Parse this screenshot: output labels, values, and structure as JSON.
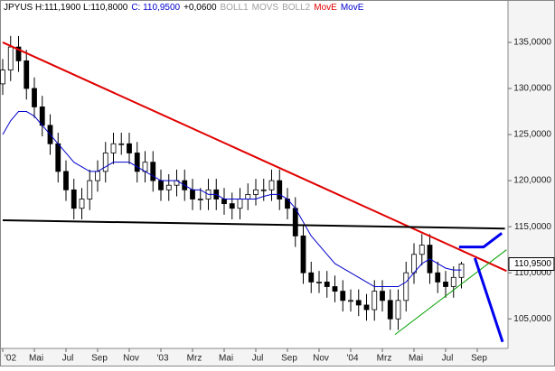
{
  "chart_data": {
    "type": "candlestick",
    "header": [
      {
        "text": "JPYUS H:111,1900 L:110,8000",
        "color": "#000000"
      },
      {
        "text": "C: 110,9500",
        "color": "#0000cc"
      },
      {
        "text": "+0,0600",
        "color": "#000000"
      },
      {
        "text": "BOLL1",
        "color": "#a0a0a0"
      },
      {
        "text": "MOVS",
        "color": "#a0a0a0"
      },
      {
        "text": "BOLL2",
        "color": "#a0a0a0"
      },
      {
        "text": "MovE",
        "color": "#e00000"
      },
      {
        "text": "MovE",
        "color": "#0000cc"
      }
    ],
    "categories": [
      "'02",
      null,
      null,
      null,
      "Mai",
      null,
      null,
      null,
      "Jul",
      null,
      null,
      null,
      "Sep",
      null,
      null,
      null,
      "Nov",
      null,
      null,
      null,
      "'03",
      null,
      null,
      null,
      "Mrz",
      null,
      null,
      null,
      "Mai",
      null,
      null,
      null,
      "Jul",
      null,
      null,
      null,
      "Sep",
      null,
      null,
      null,
      "Nov",
      null,
      null,
      null,
      "'04",
      null,
      null,
      null,
      "Mrz",
      null,
      null,
      null,
      "Mai",
      null,
      null,
      null,
      "Jul",
      null,
      null,
      null,
      "Sep",
      null,
      null,
      null
    ],
    "open": [
      130.5,
      132,
      134.5,
      133,
      130,
      128,
      126,
      124,
      121,
      119,
      117,
      118,
      120,
      121,
      123,
      124,
      124,
      123,
      121,
      122,
      120,
      119,
      119.5,
      120,
      119,
      118,
      118,
      119,
      118,
      117.5,
      117,
      118,
      118.5,
      119,
      119,
      120,
      118,
      117,
      114,
      110,
      109,
      109,
      108.5,
      108,
      107,
      107,
      106.5,
      106,
      108,
      107,
      105,
      107,
      110,
      112,
      113,
      110,
      109,
      108.5,
      109.5,
      null,
      null,
      null,
      null,
      null
    ],
    "high": [
      133.2,
      135.7,
      135.7,
      134.2,
      131.2,
      129.2,
      127.2,
      125.2,
      122.2,
      120.2,
      119.2,
      121.2,
      122.2,
      124.2,
      125.2,
      125.2,
      125.2,
      124.2,
      123.2,
      123.2,
      121.2,
      120.7,
      121.2,
      121.2,
      120.2,
      119.2,
      120.2,
      120.2,
      119.2,
      118.7,
      119.2,
      119.7,
      120.2,
      120.2,
      121.2,
      121.2,
      119.2,
      118.2,
      115.2,
      111.2,
      110.2,
      110.2,
      109.7,
      109.2,
      108.2,
      108.2,
      107.7,
      109.2,
      109.2,
      108.2,
      108.2,
      111.2,
      113.2,
      114.2,
      114.2,
      111.2,
      110.2,
      110.7,
      111.19,
      null,
      null,
      null,
      null,
      null
    ],
    "low": [
      129.3,
      130.8,
      131.8,
      128.8,
      126.8,
      124.8,
      122.8,
      119.8,
      117.8,
      115.8,
      115.8,
      116.8,
      118.8,
      119.8,
      121.8,
      122.8,
      121.8,
      119.8,
      119.8,
      118.8,
      117.8,
      117.8,
      118.3,
      117.8,
      116.8,
      116.8,
      116.8,
      116.8,
      116.3,
      115.8,
      115.8,
      116.8,
      117.3,
      117.8,
      117.8,
      116.8,
      115.8,
      112.8,
      108.8,
      107.8,
      107.8,
      107.3,
      106.8,
      105.8,
      105.8,
      105.3,
      104.8,
      104.8,
      105.8,
      103.8,
      103.8,
      105.8,
      108.8,
      110.8,
      108.8,
      107.8,
      107.3,
      107.3,
      108.3,
      null,
      null,
      null,
      null,
      null
    ],
    "close": [
      132,
      134.5,
      133,
      130,
      128,
      126,
      124,
      121,
      119,
      117,
      118,
      120,
      121,
      123,
      124,
      124,
      123,
      121,
      122,
      120,
      119,
      119.5,
      120,
      119,
      118,
      118,
      119,
      118,
      117.5,
      117,
      118,
      118.5,
      119,
      119,
      120,
      118,
      117,
      114,
      110,
      109,
      109,
      108.5,
      108,
      107,
      107,
      106.5,
      106,
      108,
      107,
      105,
      107,
      110,
      112,
      113,
      110,
      109,
      108.5,
      109.5,
      110.95,
      null,
      null,
      null,
      null,
      null
    ],
    "series": [
      {
        "name": "MovE",
        "color": "#0000cc",
        "values": [
          125,
          126.5,
          127.5,
          127.5,
          127,
          126,
          125,
          124,
          123,
          122,
          121.5,
          121,
          121,
          121.5,
          122,
          122,
          122,
          121.5,
          121,
          120.5,
          120,
          120,
          120,
          119.5,
          119,
          119,
          118.5,
          118.5,
          118,
          118,
          118,
          118,
          118,
          118.3,
          118.5,
          118.5,
          118,
          117,
          115.5,
          114,
          113,
          112,
          111,
          110.5,
          110,
          109.5,
          109,
          108.5,
          108.5,
          108.5,
          108.5,
          109,
          110,
          111,
          111.5,
          111,
          110.5,
          110.3,
          110.3,
          null,
          null,
          null,
          null,
          null
        ]
      }
    ],
    "trendlines": [
      {
        "color": "#e00000",
        "width": 2,
        "x": [
          0,
          63.7
        ],
        "y": [
          135,
          110.2
        ]
      },
      {
        "color": "#000000",
        "width": 2,
        "x": [
          0,
          63.5
        ],
        "y": [
          115.7,
          114.8
        ]
      },
      {
        "color": "#00a000",
        "width": 1,
        "x": [
          49.6,
          63.7
        ],
        "y": [
          103.3,
          112.5
        ]
      },
      {
        "color": "#0000ee",
        "width": 3,
        "x": [
          57.7,
          60.8,
          63.1
        ],
        "y": [
          112.8,
          112.8,
          114.3
        ]
      },
      {
        "color": "#0000ee",
        "width": 3,
        "x": [
          59.7,
          63.2
        ],
        "y": [
          111.6,
          102.5
        ]
      }
    ],
    "last_price_label": "110,9500",
    "ylim": [
      101.4,
      139.6
    ],
    "yticks": [
      {
        "value": 105,
        "label": "105,0000"
      },
      {
        "value": 110,
        "label": "110,0000"
      },
      {
        "value": 115,
        "label": "115,0000"
      },
      {
        "value": 120,
        "label": "120,0000"
      },
      {
        "value": 125,
        "label": "125,0000"
      },
      {
        "value": 130,
        "label": "130,0000"
      },
      {
        "value": 135,
        "label": "135,0000"
      }
    ]
  }
}
